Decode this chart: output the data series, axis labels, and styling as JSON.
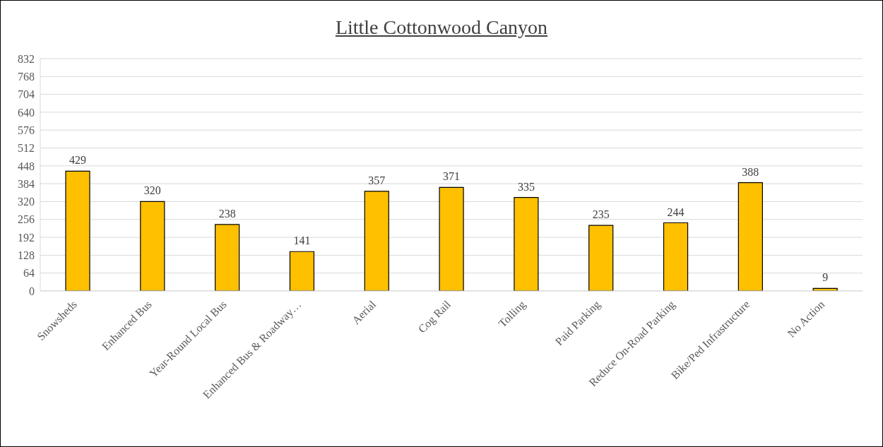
{
  "chart_data": {
    "type": "bar",
    "title": "Little Cottonwood Canyon",
    "categories": [
      "Snowsheds",
      "Enhanced Bus",
      "Year-Round Local Bus",
      "Enhanced Bus & Roadway…",
      "Aerial",
      "Cog Rail",
      "Tolling",
      "Paid Parking",
      "Reduce On-Road Parking",
      "Bike/Ped Infrastructure",
      "No Action"
    ],
    "values": [
      429,
      320,
      238,
      141,
      357,
      371,
      335,
      235,
      244,
      388,
      9
    ],
    "color": "#ffc000",
    "ylim": [
      0,
      832
    ],
    "yticks": [
      0,
      64,
      128,
      192,
      256,
      320,
      384,
      448,
      512,
      576,
      640,
      704,
      768,
      832
    ],
    "grid": "y",
    "data_labels": true
  }
}
